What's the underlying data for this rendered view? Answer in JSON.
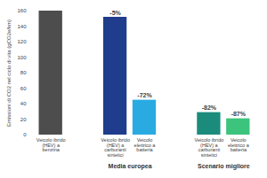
{
  "chart_data": {
    "type": "bar",
    "categories": [
      "Veicolo ibrido (HEV) a benzina",
      "Veicolo ibrido (HEV) a carburanti sintetici",
      "Veicolo elettrico a batteria",
      "Veicolo ibrido (HEV) a carburanti sintetici",
      "Veicolo elettrico a batteria"
    ],
    "values": [
      160,
      152,
      45,
      29,
      21
    ],
    "colors": [
      "#4d4d4d",
      "#1f3d8c",
      "#29abe2",
      "#1b8c7c",
      "#3cc47c"
    ],
    "annotations": [
      null,
      "-5%",
      "-72%",
      "-82%",
      "-87%"
    ],
    "groups": [
      null,
      "Media europea",
      "Media europea",
      "Scenario migliore",
      "Scenario migliore"
    ],
    "ylabel": "Emissioni di CO2 nel ciclo di vita (gCO2e/km)",
    "ylim": [
      0,
      160
    ],
    "yticks": [
      0,
      20,
      40,
      60,
      80,
      100,
      120,
      140,
      160
    ],
    "grid": false
  }
}
